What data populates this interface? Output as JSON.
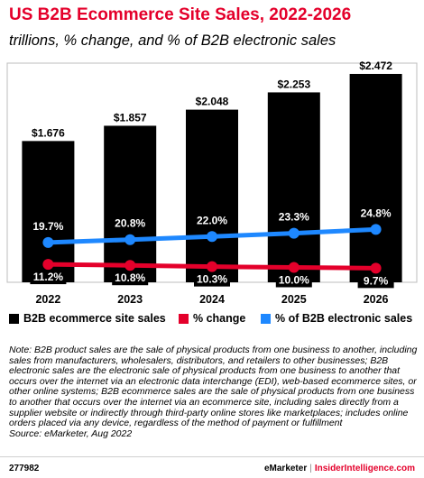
{
  "header": {
    "title": "US B2B Ecommerce Site Sales, 2022-2026",
    "subtitle": "trillions, % change, and % of B2B electronic sales"
  },
  "chart_data": {
    "type": "bar",
    "categories": [
      "2022",
      "2023",
      "2024",
      "2025",
      "2026"
    ],
    "series": [
      {
        "name": "B2B ecommerce site sales",
        "type": "bar",
        "color": "#000000",
        "values": [
          1.676,
          1.857,
          2.048,
          2.253,
          2.472
        ],
        "labels": [
          "$1.676",
          "$1.857",
          "$2.048",
          "$2.253",
          "$2.472"
        ]
      },
      {
        "name": "% change",
        "type": "line",
        "color": "#e4002b",
        "values": [
          11.2,
          10.8,
          10.3,
          10.0,
          9.7
        ],
        "labels": [
          "11.2%",
          "10.8%",
          "10.3%",
          "10.0%",
          "9.7%"
        ]
      },
      {
        "name": "% of B2B electronic sales",
        "type": "line",
        "color": "#1e88ff",
        "values": [
          19.7,
          20.8,
          22.0,
          23.3,
          24.8
        ],
        "labels": [
          "19.7%",
          "20.8%",
          "22.0%",
          "23.3%",
          "24.8%"
        ]
      }
    ],
    "ylim": [
      0,
      2.6
    ],
    "legend_position": "bottom"
  },
  "note": {
    "text": "Note: B2B product sales are the sale of physical products from one business to another, including sales from manufacturers, wholesalers, distributors, and retailers to other businesses; B2B electronic sales are the electronic sale of physical products from one business to another that occurs over the internet via an electronic data interchange (EDI), web-based ecommerce sites, or other online systems; B2B ecommerce sales are the sale of physical products from one business to another that occurs over the internet via an ecommerce site, including sales directly from a supplier website or indirectly through third-party online stores like marketplaces; includes online orders placed via any device, regardless of the method of payment or fulfillment",
    "source": "Source: eMarketer, Aug 2022"
  },
  "footer": {
    "id": "277982",
    "brand": "eMarketer",
    "separator": "|",
    "site": "InsiderIntelligence.com"
  }
}
